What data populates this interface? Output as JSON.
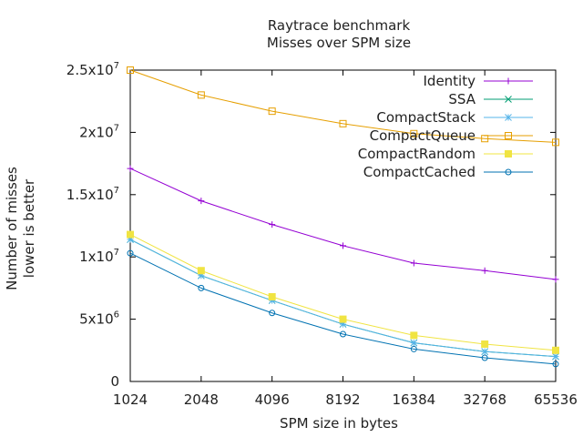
{
  "chart_data": {
    "type": "line",
    "title": "Raytrace benchmark",
    "subtitle": "Misses over SPM size",
    "xlabel": "SPM size in bytes",
    "ylabel": "Number of misses",
    "ylabel2": "lower is better",
    "categories": [
      "1024",
      "2048",
      "4096",
      "8192",
      "16384",
      "32768",
      "65536"
    ],
    "ylim": [
      0,
      25000000
    ],
    "yticks": [
      {
        "value": 0,
        "mantissa": "0",
        "exponent": ""
      },
      {
        "value": 5000000,
        "mantissa": "5x10",
        "exponent": "6"
      },
      {
        "value": 10000000,
        "mantissa": "1x10",
        "exponent": "7"
      },
      {
        "value": 15000000,
        "mantissa": "1.5x10",
        "exponent": "7"
      },
      {
        "value": 20000000,
        "mantissa": "2x10",
        "exponent": "7"
      },
      {
        "value": 25000000,
        "mantissa": "2.5x10",
        "exponent": "7"
      }
    ],
    "grid": false,
    "legend_position": "top-right",
    "series": [
      {
        "name": "Identity",
        "color": "#9400d3",
        "marker": "plus",
        "values": [
          17100000,
          14500000,
          12600000,
          10900000,
          9500000,
          8900000,
          8200000
        ]
      },
      {
        "name": "SSA",
        "color": "#009e73",
        "marker": "cross",
        "values": [
          11400000,
          8500000,
          6500000,
          4600000,
          3100000,
          2400000,
          2000000
        ]
      },
      {
        "name": "CompactStack",
        "color": "#56b4e9",
        "marker": "star",
        "values": [
          11400000,
          8500000,
          6500000,
          4600000,
          3100000,
          2400000,
          2000000
        ]
      },
      {
        "name": "CompactQueue",
        "color": "#e69f00",
        "marker": "box",
        "values": [
          25000000,
          23000000,
          21700000,
          20700000,
          19900000,
          19500000,
          19200000
        ]
      },
      {
        "name": "CompactRandom",
        "color": "#f0e442",
        "marker": "filled-box",
        "values": [
          11800000,
          8900000,
          6800000,
          5000000,
          3700000,
          3000000,
          2500000
        ]
      },
      {
        "name": "CompactCached",
        "color": "#0072b2",
        "marker": "circle",
        "values": [
          10300000,
          7500000,
          5500000,
          3800000,
          2600000,
          1900000,
          1400000
        ]
      }
    ]
  }
}
